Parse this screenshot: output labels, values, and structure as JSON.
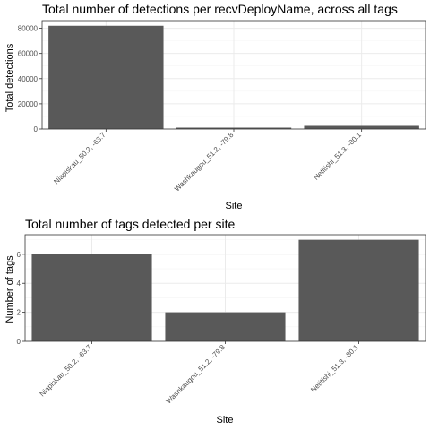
{
  "chart_data": [
    {
      "type": "bar",
      "title": "Total number of detections per recvDeployName, across all tags",
      "xlabel": "Site",
      "ylabel": "Total detections",
      "categories": [
        "Niapiskau_50.2, -63.7",
        "Washkaugou_51.2, -79.8",
        "Netitishi_51.3, -80.1"
      ],
      "values": [
        82000,
        400,
        2500
      ],
      "ylim": [
        0,
        86100
      ],
      "yticks": [
        0,
        20000,
        40000,
        60000,
        80000
      ],
      "grid": true,
      "bar_color": "#595959"
    },
    {
      "type": "bar",
      "title": "Total number of tags detected per site",
      "xlabel": "Site",
      "ylabel": "Number of tags",
      "categories": [
        "Niapiskau_50.2, -63.7",
        "Washkaugou_51.2, -79.8",
        "Netitishi_51.3, -80.1"
      ],
      "values": [
        6,
        2,
        7
      ],
      "ylim": [
        0,
        7.35
      ],
      "yticks": [
        0,
        2,
        4,
        6
      ],
      "grid": true,
      "bar_color": "#595959"
    }
  ]
}
